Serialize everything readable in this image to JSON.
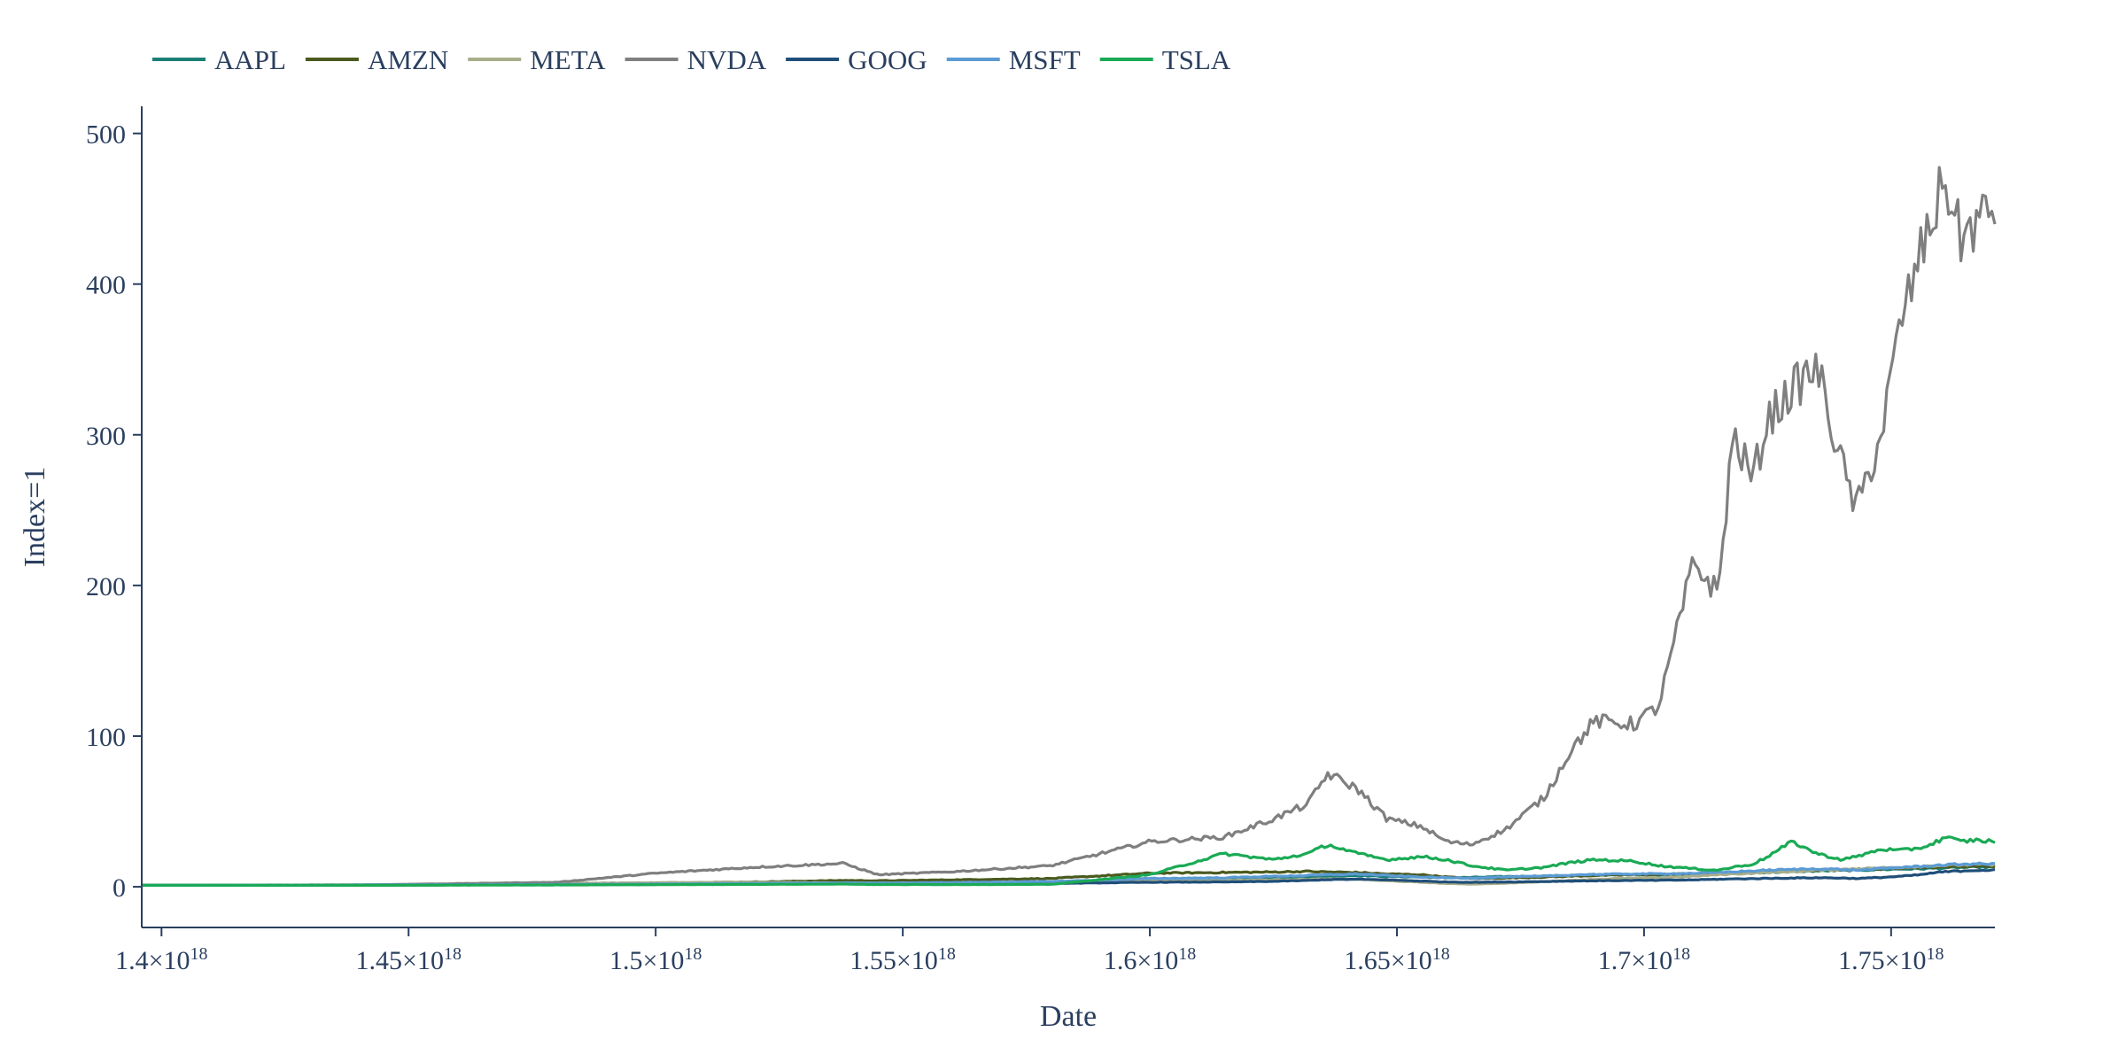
{
  "chart_data": {
    "type": "line",
    "title": "",
    "xlabel": "Date",
    "ylabel": "Index=1",
    "xlim": [
      1.396e+18,
      1.771e+18
    ],
    "ylim": [
      -27,
      518
    ],
    "x_ticks": [
      {
        "value": 1.4e+18,
        "mantissa": "1.4",
        "exp": "18"
      },
      {
        "value": 1.45e+18,
        "mantissa": "1.45",
        "exp": "18"
      },
      {
        "value": 1.5e+18,
        "mantissa": "1.5",
        "exp": "18"
      },
      {
        "value": 1.55e+18,
        "mantissa": "1.55",
        "exp": "18"
      },
      {
        "value": 1.6e+18,
        "mantissa": "1.6",
        "exp": "18"
      },
      {
        "value": 1.65e+18,
        "mantissa": "1.65",
        "exp": "18"
      },
      {
        "value": 1.7e+18,
        "mantissa": "1.7",
        "exp": "18"
      },
      {
        "value": 1.75e+18,
        "mantissa": "1.75",
        "exp": "18"
      }
    ],
    "y_ticks": [
      0,
      100,
      200,
      300,
      400,
      500
    ],
    "grid": false,
    "legend_position": "top-left",
    "x": [
      1.396e+18,
      1.44e+18,
      1.48e+18,
      1.5e+18,
      1.52e+18,
      1.538e+18,
      1.545e+18,
      1.56e+18,
      1.58e+18,
      1.6e+18,
      1.615e+18,
      1.625e+18,
      1.632e+18,
      1.636e+18,
      1.642e+18,
      1.648e+18,
      1.655e+18,
      1.66e+18,
      1.665e+18,
      1.672e+18,
      1.68e+18,
      1.685e+18,
      1.69e+18,
      1.698e+18,
      1.703e+18,
      1.71e+18,
      1.715e+18,
      1.718e+18,
      1.722e+18,
      1.725e+18,
      1.73e+18,
      1.735e+18,
      1.74e+18,
      1.743e+18,
      1.748e+18,
      1.752e+18,
      1.756e+18,
      1.758e+18,
      1.761e+18,
      1.764e+18,
      1.767e+18,
      1.771e+18
    ],
    "series": [
      {
        "name": "AAPL",
        "color": "#1a7f74",
        "values": [
          1,
          1.2,
          1.5,
          1.6,
          1.8,
          2.2,
          2.0,
          2.2,
          2.8,
          4.5,
          5.5,
          6.0,
          6.5,
          7.0,
          7.5,
          6.8,
          6.5,
          6.0,
          6.2,
          6.8,
          7.2,
          7.5,
          8.0,
          8.2,
          8.0,
          8.6,
          9.0,
          9.2,
          9.5,
          9.6,
          10.0,
          10.5,
          10.8,
          11.0,
          11.5,
          11.8,
          12.0,
          12.2,
          12.5,
          12.8,
          13.0,
          13.0
        ]
      },
      {
        "name": "AMZN",
        "color": "#4a5a1e",
        "values": [
          1,
          1.1,
          2.2,
          2.6,
          3.2,
          4.2,
          4.0,
          4.6,
          5.5,
          9.0,
          9.5,
          9.8,
          10.2,
          9.8,
          9.5,
          8.5,
          8.0,
          6.5,
          5.5,
          5.8,
          6.5,
          7.0,
          7.5,
          8.0,
          8.2,
          8.6,
          9.0,
          9.2,
          9.8,
          10.2,
          10.5,
          11.0,
          11.5,
          11.8,
          12.0,
          12.5,
          12.8,
          13.0,
          13.2,
          13.5,
          13.8,
          13.5
        ]
      },
      {
        "name": "META",
        "color": "#a9ae8a",
        "values": [
          1,
          1.3,
          2.2,
          2.6,
          3.0,
          2.6,
          2.4,
          2.5,
          2.8,
          3.8,
          4.2,
          4.6,
          5.0,
          5.2,
          5.0,
          4.0,
          3.0,
          2.2,
          1.8,
          2.4,
          3.5,
          4.2,
          5.0,
          5.8,
          6.0,
          7.0,
          8.0,
          8.5,
          9.0,
          9.5,
          10.0,
          11.0,
          11.5,
          12.0,
          12.5,
          13.0,
          13.5,
          14.0,
          14.2,
          14.5,
          14.8,
          14.5
        ]
      },
      {
        "name": "NVDA",
        "color": "#7f7f7f",
        "values": [
          1,
          1.2,
          3.0,
          9.0,
          13.0,
          15.5,
          8.0,
          10.0,
          14.0,
          30.0,
          33.0,
          45.0,
          55.0,
          75.0,
          65.0,
          45.0,
          40.0,
          30.0,
          28.0,
          38.0,
          60.0,
          90.0,
          110.0,
          108.0,
          120.0,
          215.0,
          195.0,
          300.0,
          270.0,
          310.0,
          330.0,
          345.0,
          280.0,
          250.0,
          300.0,
          375.0,
          420.0,
          440.0,
          470.0,
          430.0,
          440.0,
          450.0
        ]
      },
      {
        "name": "GOOG",
        "color": "#1f4e79",
        "values": [
          1,
          1.1,
          1.4,
          1.6,
          1.8,
          2.0,
          1.9,
          2.0,
          2.2,
          3.0,
          3.2,
          3.6,
          4.2,
          4.8,
          5.0,
          4.6,
          3.8,
          3.2,
          3.0,
          3.2,
          3.5,
          3.8,
          4.0,
          4.2,
          4.3,
          4.6,
          5.0,
          5.2,
          5.4,
          5.6,
          5.8,
          6.0,
          5.8,
          5.5,
          6.2,
          7.0,
          8.0,
          9.0,
          10.0,
          10.5,
          11.0,
          11.0
        ]
      },
      {
        "name": "MSFT",
        "color": "#5b9bd5",
        "values": [
          1,
          1.2,
          1.5,
          1.8,
          2.2,
          2.6,
          2.5,
          2.8,
          3.5,
          5.5,
          6.0,
          7.0,
          7.5,
          8.0,
          8.5,
          7.5,
          6.5,
          6.0,
          5.8,
          6.5,
          7.0,
          7.8,
          8.2,
          8.5,
          8.6,
          9.0,
          9.5,
          10.0,
          10.5,
          11.0,
          11.5,
          12.0,
          11.5,
          11.0,
          12.0,
          13.0,
          13.5,
          14.0,
          14.5,
          15.0,
          15.2,
          15.0
        ]
      },
      {
        "name": "TSLA",
        "color": "#1aaa55",
        "values": [
          1,
          1.0,
          1.2,
          1.4,
          1.6,
          1.8,
          1.5,
          1.5,
          1.6,
          8.0,
          22.0,
          18.0,
          22.0,
          28.0,
          22.0,
          18.0,
          20.0,
          18.0,
          14.0,
          11.0,
          13.0,
          16.0,
          18.0,
          17.0,
          14.0,
          12.0,
          11.0,
          13.0,
          15.0,
          20.0,
          30.0,
          22.0,
          18.0,
          20.0,
          25.0,
          24.0,
          26.0,
          28.0,
          33.0,
          30.0,
          31.0,
          30.0
        ]
      }
    ]
  }
}
